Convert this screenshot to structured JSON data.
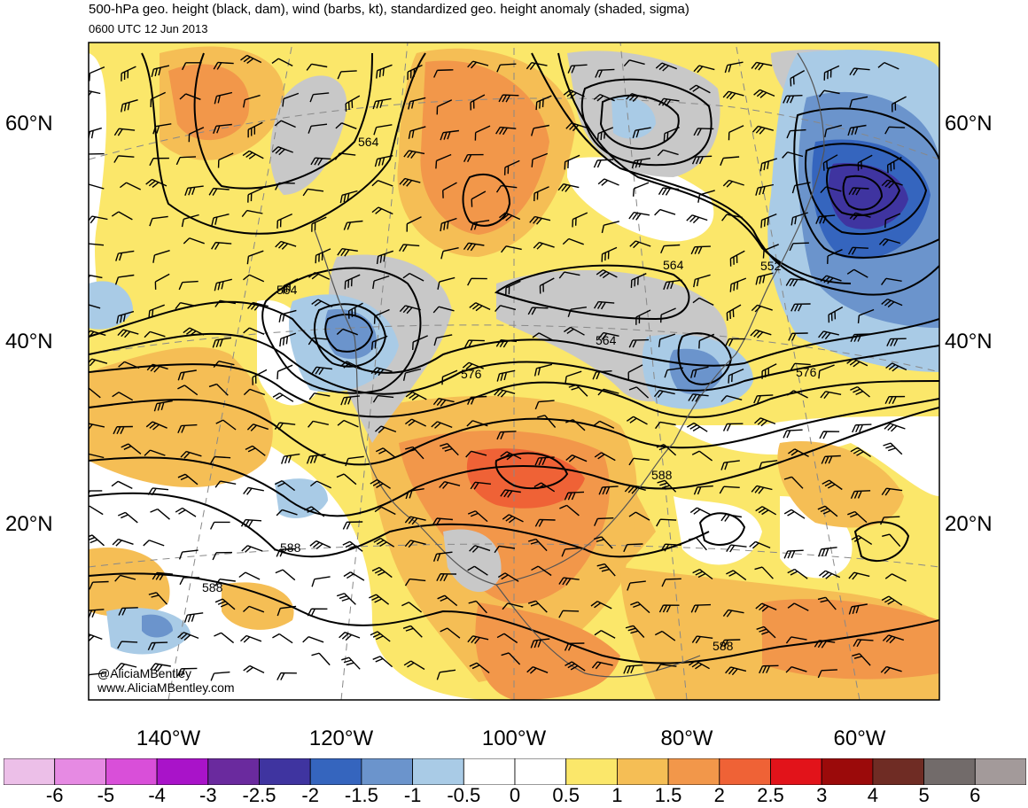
{
  "header": {
    "title": "500-hPa geo. height (black, dam), wind (barbs, kt), standardized geo. height anomaly (shaded, sigma)",
    "valid_time": "0600 UTC 12 Jun 2013"
  },
  "map": {
    "lat_labels": [
      "60°N",
      "40°N",
      "20°N"
    ],
    "lon_labels": [
      "140°W",
      "120°W",
      "100°W",
      "80°W",
      "60°W"
    ],
    "contour_labels": [
      "564",
      "564",
      "564",
      "564",
      "552",
      "576",
      "576",
      "588",
      "588",
      "588",
      "588"
    ],
    "credits": {
      "handle": "@AliciaMBentley",
      "website": "www.AliciaMBentley.com"
    }
  },
  "colorbar": {
    "labels": [
      "-6",
      "-5",
      "-4",
      "-3",
      "-2.5",
      "-2",
      "-1.5",
      "-1",
      "-0.5",
      "0",
      "0.5",
      "1",
      "1.5",
      "2",
      "2.5",
      "3",
      "4",
      "5",
      "6"
    ],
    "colors": [
      "#ecbfe8",
      "#e68ae3",
      "#d94fd9",
      "#a913c9",
      "#6a2a9e",
      "#3f34a0",
      "#3565be",
      "#6b94cc",
      "#a9cbe6",
      "#ffffff",
      "#ffffff",
      "#fbe76a",
      "#f5be55",
      "#f2974a",
      "#ef6236",
      "#e2131a",
      "#9b0a0a",
      "#6f2c24",
      "#726b6a",
      "#a39a9a"
    ]
  }
}
